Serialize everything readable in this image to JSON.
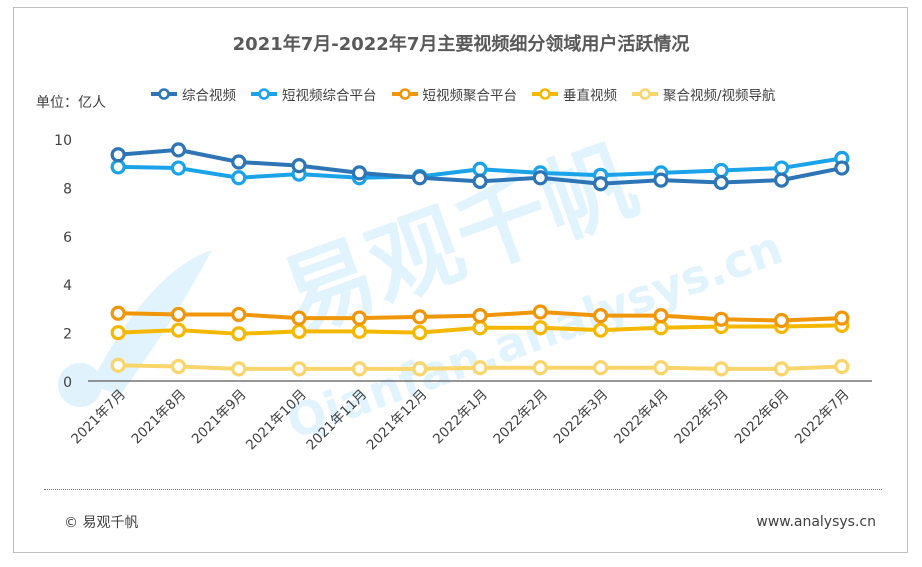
{
  "footer": {
    "copyright": "© 易观千帆",
    "website": "www.analysys.cn"
  },
  "watermark": {
    "text_cn": "易观千帆",
    "text_en": "Qianfan.analysys.cn"
  },
  "chart_data": {
    "type": "line",
    "title": "2021年7月-2022年7月主要视频细分领域用户活跃情况",
    "unit_label": "单位：亿人",
    "categories": [
      "2021年7月",
      "2021年8月",
      "2021年9月",
      "2021年10月",
      "2021年11月",
      "2021年12月",
      "2022年1月",
      "2022年2月",
      "2022年3月",
      "2022年4月",
      "2022年5月",
      "2022年6月",
      "2022年7月"
    ],
    "ylim": [
      0,
      10
    ],
    "yticks": [
      0,
      2,
      4,
      6,
      8,
      10
    ],
    "grid": false,
    "legend_position": "top",
    "series": [
      {
        "name": "综合视频",
        "color": "#2e75b6",
        "values": [
          9.35,
          9.55,
          9.05,
          8.9,
          8.6,
          8.4,
          8.25,
          8.4,
          8.15,
          8.3,
          8.2,
          8.3,
          8.8
        ]
      },
      {
        "name": "短视频综合平台",
        "color": "#1aa3e8",
        "values": [
          8.85,
          8.8,
          8.4,
          8.55,
          8.4,
          8.45,
          8.75,
          8.6,
          8.5,
          8.6,
          8.7,
          8.8,
          9.2
        ]
      },
      {
        "name": "短视频聚合平台",
        "color": "#f0960a",
        "values": [
          2.8,
          2.75,
          2.75,
          2.6,
          2.6,
          2.65,
          2.7,
          2.85,
          2.7,
          2.7,
          2.55,
          2.5,
          2.6
        ]
      },
      {
        "name": "垂直视频",
        "color": "#f5b800",
        "values": [
          2.0,
          2.1,
          1.95,
          2.05,
          2.05,
          2.0,
          2.2,
          2.2,
          2.1,
          2.2,
          2.25,
          2.25,
          2.3
        ]
      },
      {
        "name": "聚合视频/视频导航",
        "color": "#f9d56c",
        "values": [
          0.65,
          0.6,
          0.5,
          0.5,
          0.5,
          0.5,
          0.55,
          0.55,
          0.55,
          0.55,
          0.5,
          0.5,
          0.6
        ]
      }
    ]
  }
}
